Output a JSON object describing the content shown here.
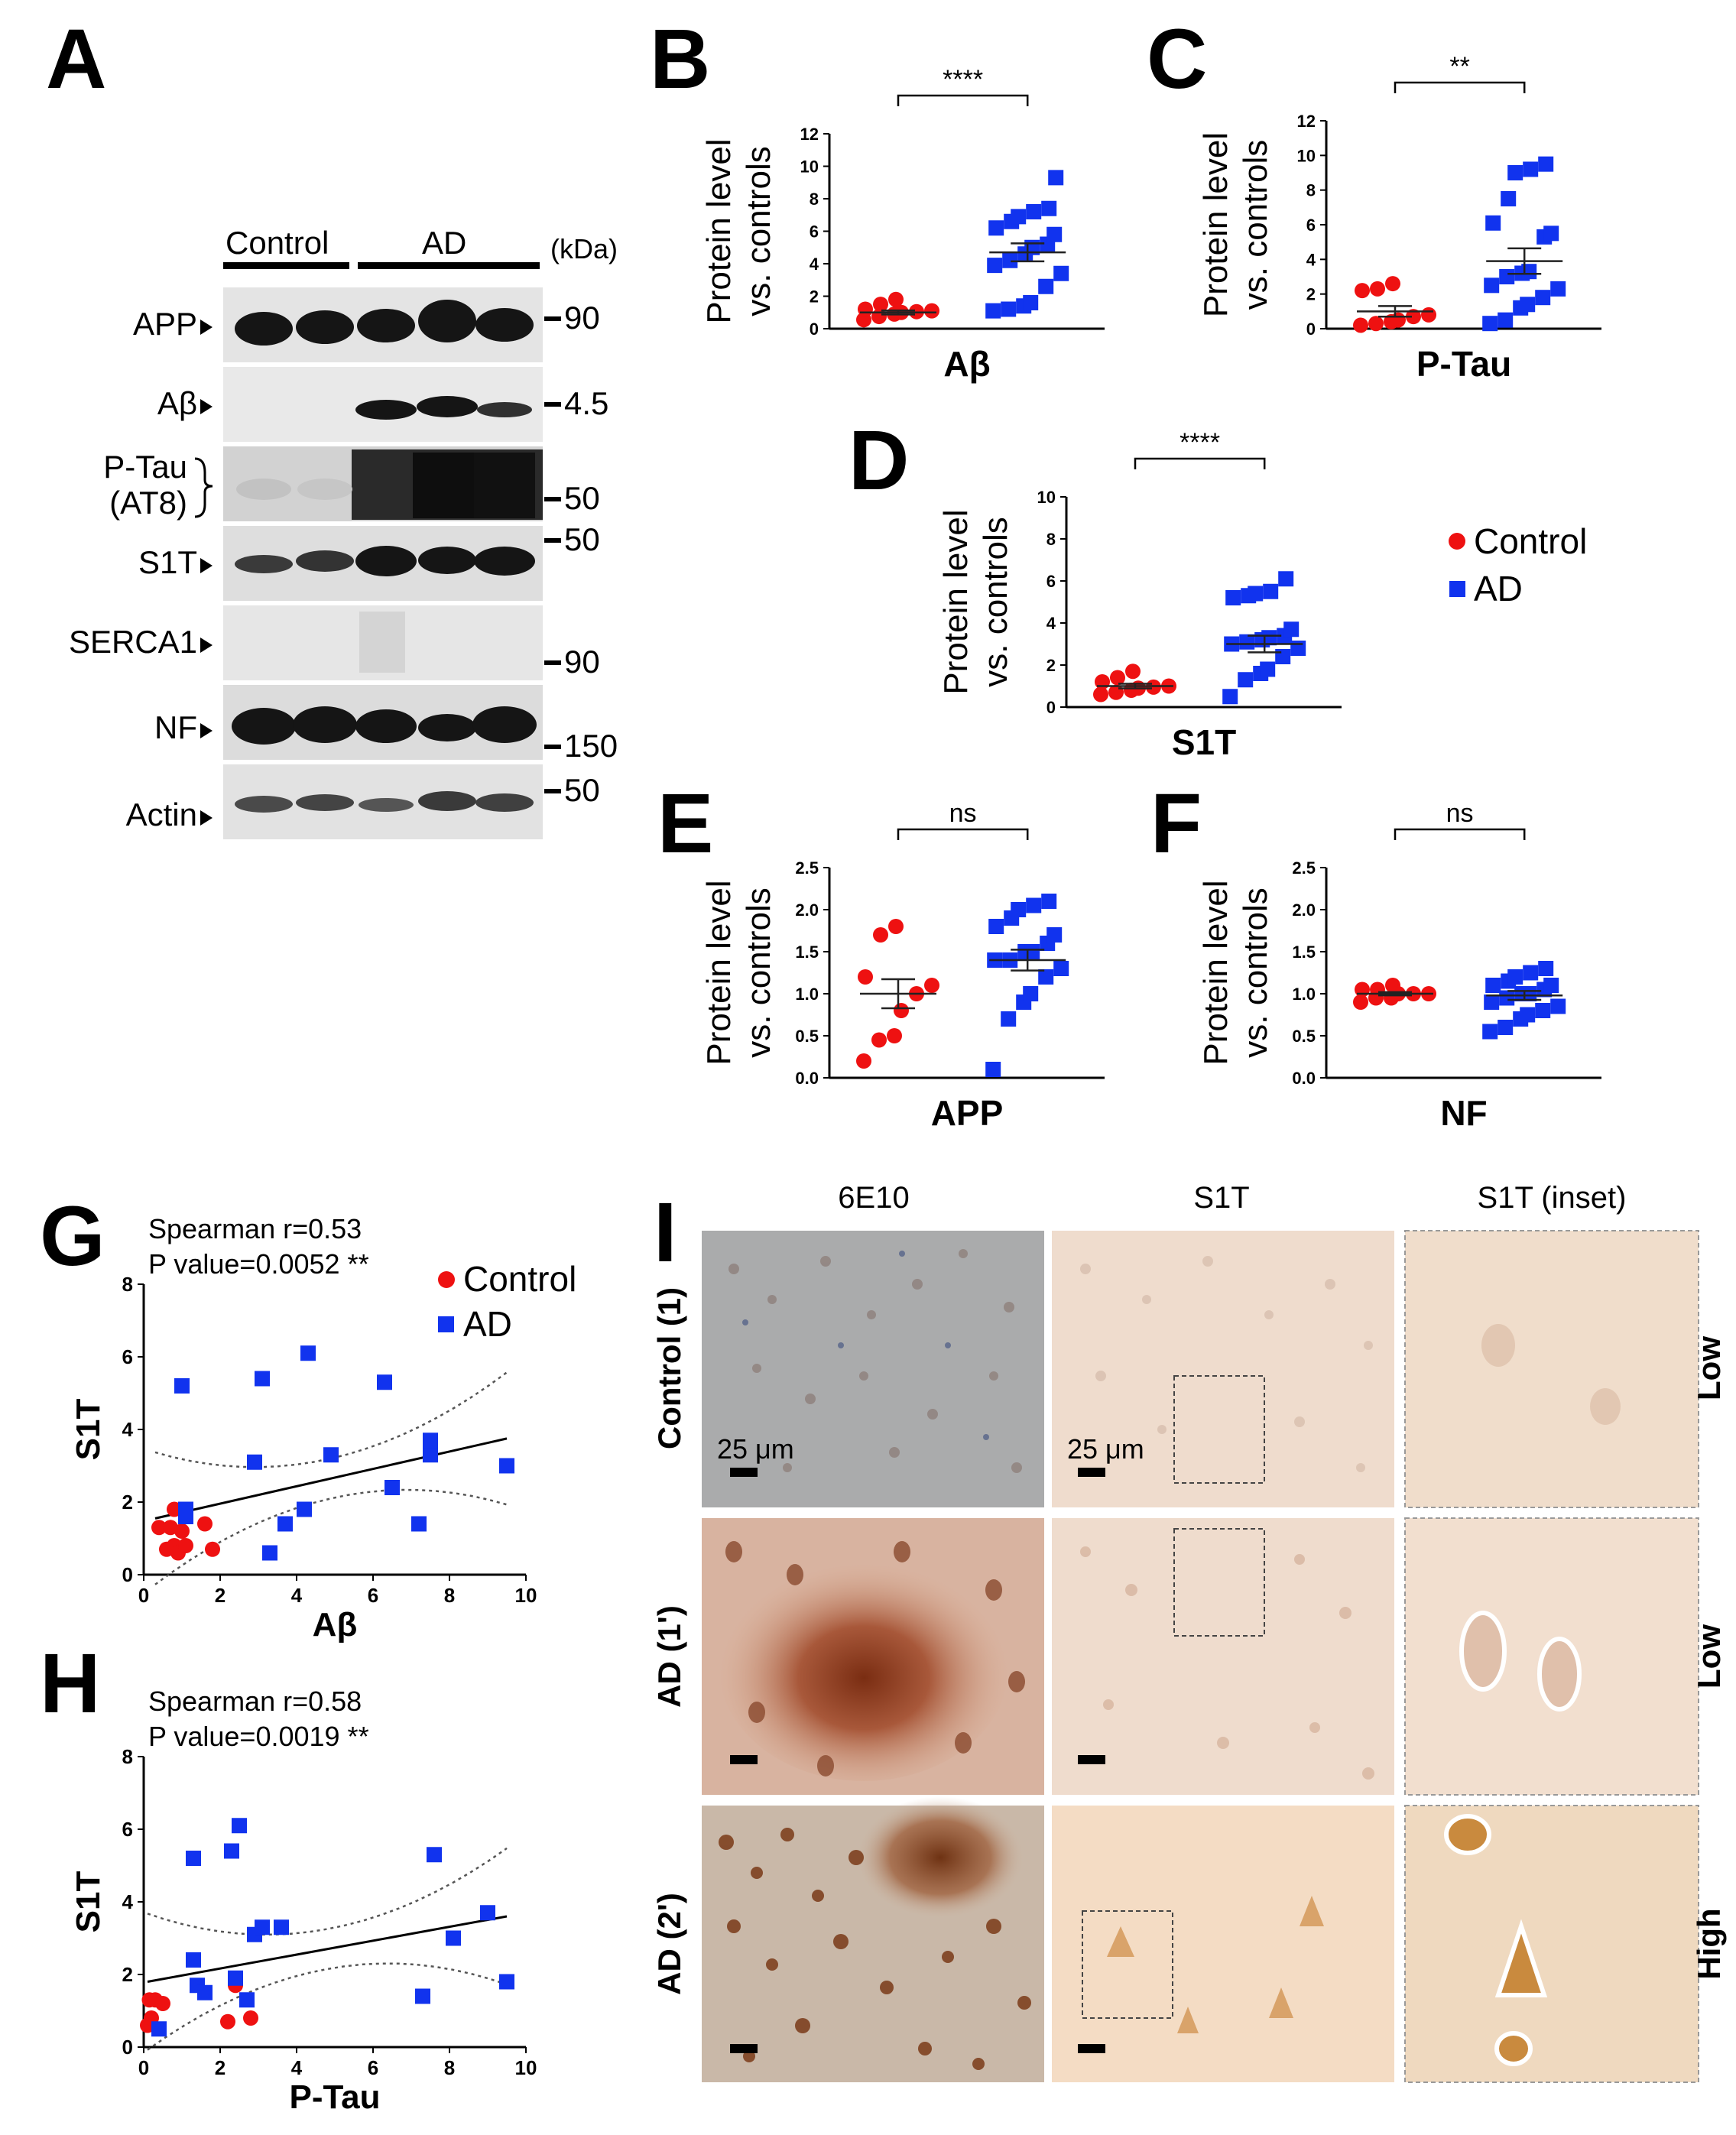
{
  "panel_labels": {
    "A": "A",
    "B": "B",
    "C": "C",
    "D": "D",
    "E": "E",
    "F": "F",
    "G": "G",
    "H": "H",
    "I": "I"
  },
  "western_blot": {
    "group_labels": [
      "Control",
      "AD"
    ],
    "kda_label": "(kDa)",
    "rows": [
      {
        "label": "APP",
        "markers": [
          "90"
        ]
      },
      {
        "label": "Aβ",
        "markers": [
          "4.5"
        ]
      },
      {
        "label": "P-Tau\n(AT8)",
        "markers": [
          "50"
        ]
      },
      {
        "label": "S1T",
        "markers": [
          "50"
        ]
      },
      {
        "label": "SERCA1",
        "markers": [
          "90"
        ]
      },
      {
        "label": "NF",
        "markers": [
          "150"
        ]
      },
      {
        "label": "Actin",
        "markers": [
          "50"
        ]
      }
    ],
    "ptau_label_line1": "P-Tau",
    "ptau_label_line2": "(AT8)"
  },
  "ylabel_line1": "Protein level",
  "ylabel_line2": "vs. controls",
  "legend": {
    "control": "Control",
    "ad": "AD",
    "control_color": "#ee1111",
    "ad_color": "#1133ee"
  },
  "chart_data": [
    {
      "id": "B",
      "type": "scatter",
      "xlabel": "Aβ",
      "ylim": [
        0,
        12
      ],
      "yticks": [
        0,
        2,
        4,
        6,
        8,
        10,
        12
      ],
      "sig": "****",
      "control": [
        0.55,
        0.75,
        0.9,
        1.0,
        1.05,
        1.1,
        1.2,
        1.5,
        1.8
      ],
      "ad": [
        1.1,
        1.2,
        1.4,
        1.6,
        2.6,
        3.4,
        3.9,
        4.2,
        4.6,
        5.0,
        5.2,
        5.8,
        6.2,
        6.6,
        6.9,
        7.2,
        7.4,
        9.3
      ],
      "control_mean": 1.0,
      "ad_mean": 4.7
    },
    {
      "id": "C",
      "type": "scatter",
      "xlabel": "P-Tau",
      "ylim": [
        0,
        12
      ],
      "yticks": [
        0,
        2,
        4,
        6,
        8,
        10,
        12
      ],
      "sig": "**",
      "control": [
        0.2,
        0.3,
        0.4,
        0.5,
        0.7,
        0.8,
        2.2,
        2.3,
        2.6
      ],
      "ad": [
        0.3,
        0.5,
        1.2,
        1.4,
        1.8,
        2.3,
        2.5,
        3.0,
        3.2,
        3.3,
        5.3,
        5.5,
        6.1,
        7.5,
        9.0,
        9.2,
        9.5
      ],
      "control_mean": 1.0,
      "ad_mean": 3.9
    },
    {
      "id": "D",
      "type": "scatter",
      "xlabel": "S1T",
      "ylim": [
        0,
        10
      ],
      "yticks": [
        0,
        2,
        4,
        6,
        8,
        10
      ],
      "sig": "****",
      "control": [
        0.6,
        0.7,
        0.8,
        0.9,
        0.95,
        1.0,
        1.2,
        1.4,
        1.7
      ],
      "ad": [
        0.5,
        1.3,
        1.6,
        1.8,
        2.4,
        2.8,
        3.0,
        3.1,
        3.2,
        3.3,
        3.4,
        3.7,
        5.2,
        5.3,
        5.4,
        5.5,
        6.1
      ],
      "control_mean": 1.0,
      "ad_mean": 3.0
    },
    {
      "id": "E",
      "type": "scatter",
      "xlabel": "APP",
      "ylim": [
        0,
        2.5
      ],
      "yticks": [
        "0.0",
        "0.5",
        "1.0",
        "1.5",
        "2.0",
        "2.5"
      ],
      "sig": "ns",
      "control": [
        0.2,
        0.45,
        0.5,
        0.8,
        1.0,
        1.1,
        1.2,
        1.7,
        1.8
      ],
      "ad": [
        0.1,
        0.7,
        0.9,
        1.0,
        1.2,
        1.3,
        1.4,
        1.4,
        1.5,
        1.5,
        1.6,
        1.7,
        1.8,
        1.9,
        2.0,
        2.05,
        2.1
      ],
      "control_mean": 1.0,
      "ad_mean": 1.4
    },
    {
      "id": "F",
      "type": "scatter",
      "xlabel": "NF",
      "ylim": [
        0,
        2.5
      ],
      "yticks": [
        "0.0",
        "0.5",
        "1.0",
        "1.5",
        "2.0",
        "2.5"
      ],
      "sig": "ns",
      "control": [
        0.9,
        0.95,
        0.95,
        1.0,
        1.0,
        1.0,
        1.05,
        1.05,
        1.1
      ],
      "ad": [
        0.55,
        0.6,
        0.7,
        0.75,
        0.8,
        0.85,
        0.9,
        0.95,
        1.0,
        1.0,
        1.05,
        1.1,
        1.1,
        1.15,
        1.2,
        1.25,
        1.3
      ],
      "control_mean": 1.0,
      "ad_mean": 0.98
    },
    {
      "id": "G",
      "type": "scatter",
      "xlabel": "Aβ",
      "ylabel": "S1T",
      "xlim": [
        0,
        10
      ],
      "ylim": [
        0,
        8
      ],
      "xticks": [
        0,
        2,
        4,
        6,
        8,
        10
      ],
      "yticks": [
        0,
        2,
        4,
        6,
        8
      ],
      "stat1": "Spearman r=0.53",
      "stat2": "P value=0.0052 **",
      "control": [
        [
          0.4,
          1.3
        ],
        [
          0.6,
          0.7
        ],
        [
          0.7,
          1.3
        ],
        [
          0.8,
          1.8
        ],
        [
          0.8,
          0.8
        ],
        [
          0.9,
          0.6
        ],
        [
          1.0,
          1.2
        ],
        [
          1.1,
          0.8
        ],
        [
          1.6,
          1.4
        ],
        [
          1.8,
          0.7
        ]
      ],
      "ad": [
        [
          1.0,
          5.2
        ],
        [
          1.1,
          1.8
        ],
        [
          1.1,
          1.6
        ],
        [
          2.9,
          3.1
        ],
        [
          3.1,
          5.4
        ],
        [
          3.3,
          0.6
        ],
        [
          3.7,
          1.4
        ],
        [
          4.2,
          1.8
        ],
        [
          4.3,
          6.1
        ],
        [
          4.9,
          3.3
        ],
        [
          6.3,
          5.3
        ],
        [
          6.5,
          2.4
        ],
        [
          7.2,
          1.4
        ],
        [
          7.5,
          3.3
        ],
        [
          7.5,
          3.7
        ],
        [
          9.5,
          3.0
        ]
      ],
      "fit": [
        [
          0.3,
          1.55
        ],
        [
          9.5,
          3.75
        ]
      ]
    },
    {
      "id": "H",
      "type": "scatter",
      "xlabel": "P-Tau",
      "ylabel": "S1T",
      "xlim": [
        0,
        10
      ],
      "ylim": [
        0,
        8
      ],
      "xticks": [
        0,
        2,
        4,
        6,
        8,
        10
      ],
      "yticks": [
        0,
        2,
        4,
        6,
        8
      ],
      "stat1": "Spearman r=0.58",
      "stat2": "P value=0.0019 **",
      "control": [
        [
          0.1,
          0.6
        ],
        [
          0.15,
          1.3
        ],
        [
          0.2,
          0.8
        ],
        [
          0.3,
          1.3
        ],
        [
          0.5,
          1.2
        ],
        [
          2.2,
          0.7
        ],
        [
          2.4,
          1.7
        ],
        [
          2.8,
          0.8
        ]
      ],
      "ad": [
        [
          0.4,
          0.5
        ],
        [
          1.3,
          5.2
        ],
        [
          1.3,
          2.4
        ],
        [
          1.4,
          1.7
        ],
        [
          1.6,
          1.5
        ],
        [
          2.3,
          5.4
        ],
        [
          2.4,
          1.9
        ],
        [
          2.5,
          6.1
        ],
        [
          2.7,
          1.3
        ],
        [
          2.9,
          3.1
        ],
        [
          3.1,
          3.3
        ],
        [
          3.6,
          3.3
        ],
        [
          7.3,
          1.4
        ],
        [
          7.6,
          5.3
        ],
        [
          8.1,
          3.0
        ],
        [
          9.0,
          3.7
        ],
        [
          9.5,
          1.8
        ]
      ],
      "fit": [
        [
          0.1,
          1.8
        ],
        [
          9.5,
          3.6
        ]
      ]
    }
  ],
  "histology": {
    "columns": [
      "6E10",
      "S1T",
      "S1T (inset)"
    ],
    "rows": [
      "Control (1)",
      "AD (1')",
      "AD (2')"
    ],
    "levels": [
      "Low",
      "Low",
      "High"
    ],
    "scale_bar": "25 μm"
  }
}
